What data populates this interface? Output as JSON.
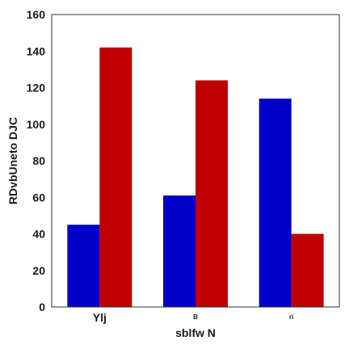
{
  "chart_data": {
    "type": "bar",
    "title": "",
    "xlabel": "sblfw N",
    "ylabel": "RDvbUneto DJC",
    "categories": [
      "Ylj",
      "B",
      "ri"
    ],
    "category_label_sizes": [
      "large",
      "small",
      "small"
    ],
    "ylim": [
      0,
      160
    ],
    "yticks": [
      0,
      20,
      40,
      60,
      80,
      100,
      120,
      140,
      160
    ],
    "grid": false,
    "legend": "none",
    "series": [
      {
        "color": "#0000c8",
        "values": [
          45,
          61,
          114
        ]
      },
      {
        "color": "#c00000",
        "values": [
          142,
          124,
          40
        ]
      }
    ]
  }
}
